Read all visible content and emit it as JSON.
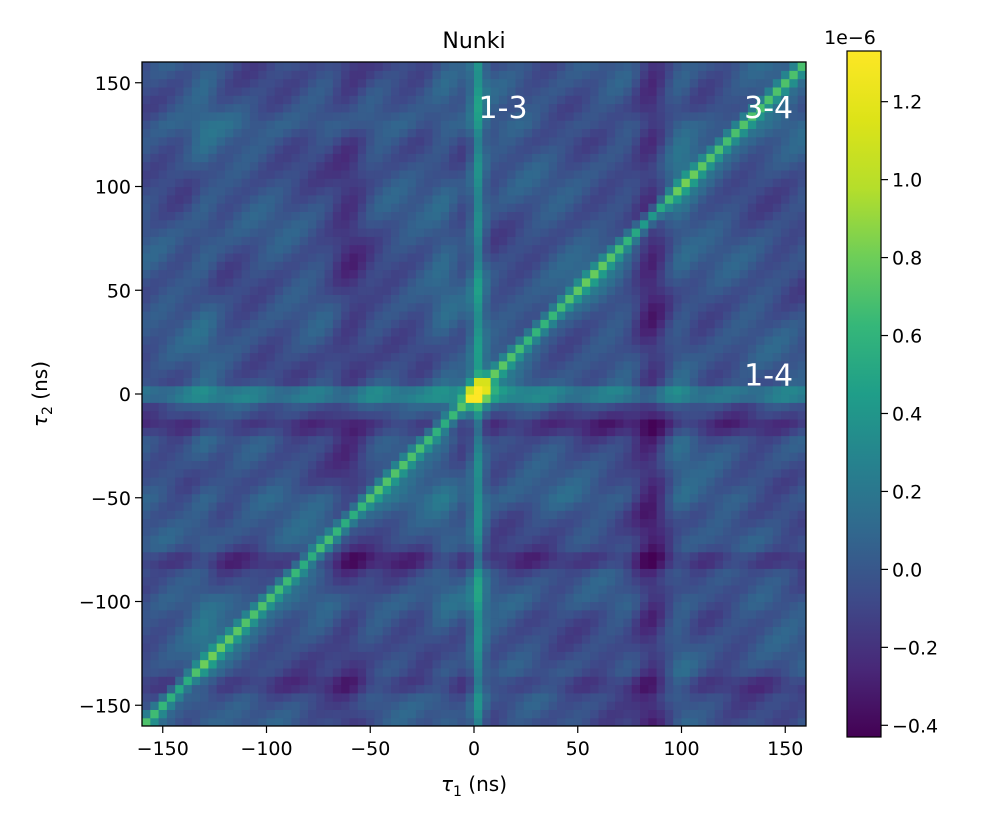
{
  "chart_data": {
    "type": "heatmap",
    "title": "Nunki",
    "xlabel": {
      "symbol": "τ",
      "sub": "1",
      "suffix": " (ns)"
    },
    "ylabel": {
      "symbol": "τ",
      "sub": "2",
      "suffix": " (ns)"
    },
    "xlim": [
      -160,
      160
    ],
    "ylim": [
      -160,
      160
    ],
    "x_ticks": [
      {
        "value": -150,
        "label": "−150"
      },
      {
        "value": -100,
        "label": "−100"
      },
      {
        "value": -50,
        "label": "−50"
      },
      {
        "value": 0,
        "label": "0"
      },
      {
        "value": 50,
        "label": "50"
      },
      {
        "value": 100,
        "label": "100"
      },
      {
        "value": 150,
        "label": "150"
      }
    ],
    "y_ticks": [
      {
        "value": 150,
        "label": "150"
      },
      {
        "value": 100,
        "label": "100"
      },
      {
        "value": 50,
        "label": "50"
      },
      {
        "value": 0,
        "label": "0"
      },
      {
        "value": -50,
        "label": "−50"
      },
      {
        "value": -100,
        "label": "−100"
      },
      {
        "value": -150,
        "label": "−150"
      }
    ],
    "colormap": "viridis",
    "colorbar": {
      "offset_label": "1e−6",
      "vmin": -0.43,
      "vmax": 1.33,
      "ticks": [
        {
          "value": 1.2,
          "label": "1.2"
        },
        {
          "value": 1.0,
          "label": "1.0"
        },
        {
          "value": 0.8,
          "label": "0.8"
        },
        {
          "value": 0.6,
          "label": "0.6"
        },
        {
          "value": 0.4,
          "label": "0.4"
        },
        {
          "value": 0.2,
          "label": "0.2"
        },
        {
          "value": 0.0,
          "label": "0.0"
        },
        {
          "value": -0.2,
          "label": "−0.2"
        },
        {
          "value": -0.4,
          "label": "−0.4"
        }
      ]
    },
    "annotations": [
      {
        "text": "1-3",
        "x": 14,
        "y": 133
      },
      {
        "text": "3-4",
        "x": 142,
        "y": 133
      },
      {
        "text": "1-4",
        "x": 142,
        "y": 4
      }
    ],
    "features": {
      "peak": {
        "x": 2,
        "y": 2,
        "value": 1.3
      },
      "diagonal_ridge": {
        "value": 0.6
      },
      "vertical_ridge_x": 2,
      "horizontal_ridge_y": 0,
      "trough_columns_x": [
        -60,
        85
      ],
      "trough_rows_y": [
        -15,
        -80,
        -140
      ]
    }
  }
}
